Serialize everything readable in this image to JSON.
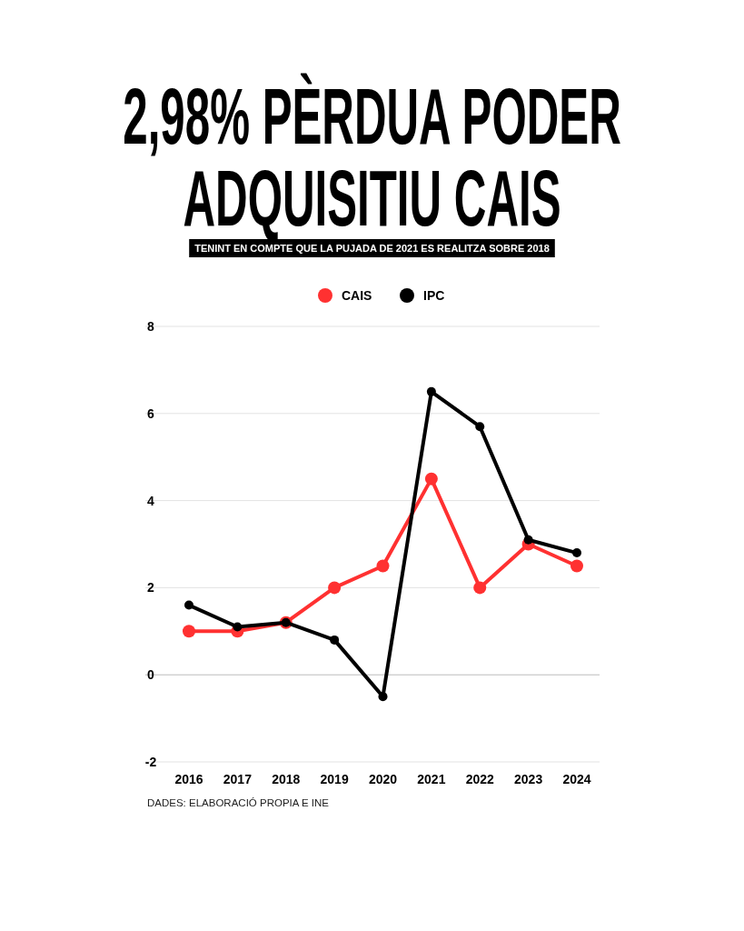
{
  "chart_data": {
    "type": "line",
    "title": "2,98% PÈRDUA PODER ADQUISITIU CAIS",
    "subtitle": "TENINT EN COMPTE QUE LA PUJADA DE 2021 ES REALITZA SOBRE 2018",
    "categories": [
      "2016",
      "2017",
      "2018",
      "2019",
      "2020",
      "2021",
      "2022",
      "2023",
      "2024"
    ],
    "series": [
      {
        "name": "CAIS",
        "color": "#ff3131",
        "values": [
          1,
          1,
          1.2,
          2,
          2.5,
          4.5,
          2,
          3,
          2.5
        ]
      },
      {
        "name": "IPC",
        "color": "#000000",
        "values": [
          1.6,
          1.1,
          1.2,
          0.8,
          -0.5,
          6.5,
          5.7,
          3.1,
          2.8
        ]
      }
    ],
    "ylim": [
      -2,
      8
    ],
    "yticks": [
      -2,
      0,
      2,
      4,
      6,
      8
    ],
    "grid": "y",
    "legend": "top",
    "marker": "circle",
    "line_style": "solid",
    "annotations": [
      "DADES: ELABORACIÓ PROPIA E INE"
    ]
  }
}
